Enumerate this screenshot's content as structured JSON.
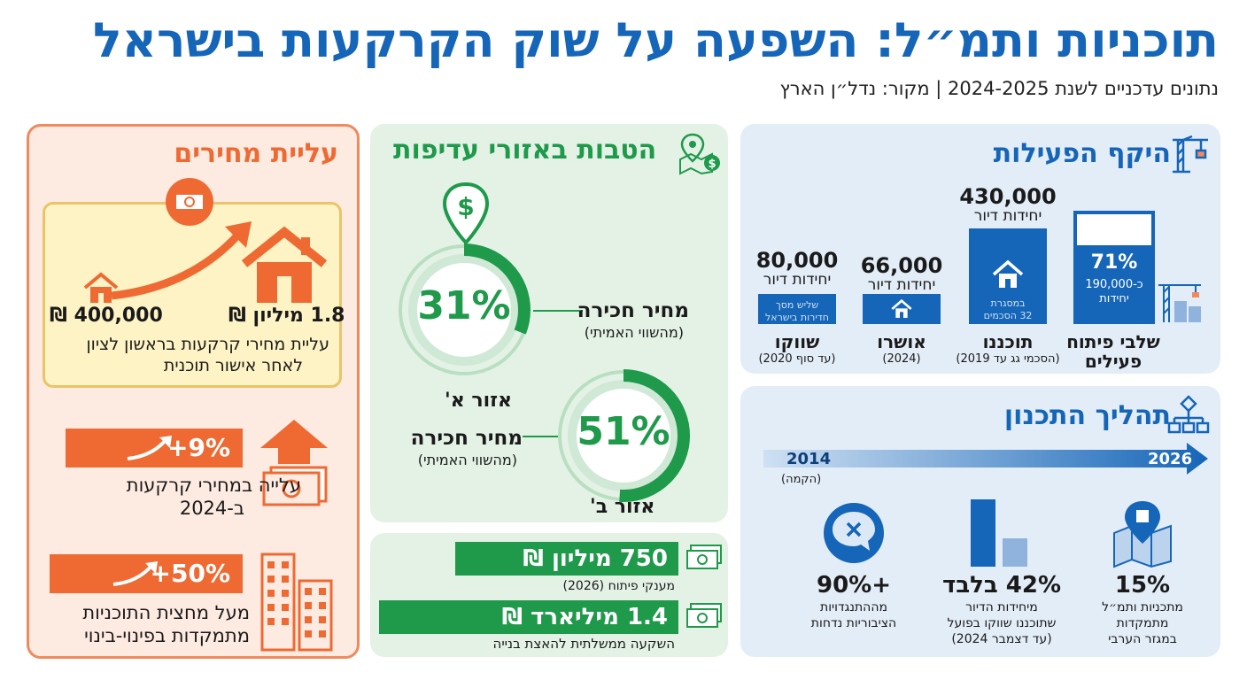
{
  "header": {
    "title": "תוכניות ותמ״ל: השפעה על שוק הקרקעות בישראל",
    "subtitle": "נתונים עדכניים לשנת 2024-2025 | מקור: נדל״ן הארץ"
  },
  "scope": {
    "title": "היקף הפעילות",
    "icon": "crane-icon",
    "bars": [
      {
        "value_label": "430,000",
        "unit": "יחידות דיור",
        "inner": [
          "במסגרת",
          "32 הסכמים"
        ],
        "name": "תוכננו",
        "note": "(הסכמי גג עד 2019)",
        "value": 430000
      },
      {
        "value_label": "66,000",
        "unit": "יחידות דיור",
        "inner": [],
        "name": "אושרו",
        "note": "(2024)",
        "value": 66000
      },
      {
        "value_label": "80,000",
        "unit": "יחידות דיור",
        "inner": [
          "שליש מסך",
          "חדירות בישראל"
        ],
        "name": "שווקו",
        "note": "(עד סוף 2020)",
        "value": 80000
      }
    ],
    "active": {
      "percent": "71%",
      "line1": "כ-190,000",
      "line2": "יחידות",
      "name_line1": "שלבי פיתוח",
      "name_line2": "פעילים",
      "fill": 0.71
    }
  },
  "process": {
    "title": "תהליך התכנון",
    "icon": "flowchart-icon",
    "timeline_start": "2014",
    "timeline_start_note": "(הקמה)",
    "timeline_end": "2026",
    "stats": [
      {
        "value": "15%",
        "lines": [
          "מתכניות ותמ״ל",
          "מתמקדות",
          "במגזר הערבי"
        ],
        "icon": "map-pin-icon"
      },
      {
        "value": "42% בלבד",
        "lines": [
          "מיחידות הדיור",
          "שתוכננו שווקו בפועל",
          "(עד דצמבר 2024)"
        ],
        "icon": "bar-chart-icon",
        "share": 0.42
      },
      {
        "value": "90%+",
        "lines": [
          "מההתנגדויות",
          "הציבוריות נדחות"
        ],
        "icon": "rejected-chat-icon"
      }
    ]
  },
  "benefits": {
    "title": "הטבות באזורי עדיפות",
    "icon": "location-money-icon",
    "zone_a": {
      "percent": "31%",
      "label": "מחיר חכירה",
      "sub": "(מהשווי האמיתי)",
      "zone": "אזור א'",
      "fraction": 0.31
    },
    "zone_b": {
      "percent": "51%",
      "label": "מחיר חכירה",
      "sub": "(מהשווי האמיתי)",
      "zone": "אזור ב'",
      "fraction": 0.51
    }
  },
  "investment": {
    "items": [
      {
        "value": "750 מיליון ₪",
        "caption": "מענקי פיתוח (2026)",
        "icon": "banknote-icon"
      },
      {
        "value": "1.4 מיליארד ₪",
        "caption": "השקעה ממשלתית להאצת בנייה",
        "icon": "banknote-icon"
      }
    ]
  },
  "prices": {
    "title": "עליית מחירים",
    "icon": "money-icon",
    "from": "400,000 ₪",
    "to": "1.8 מיליון ₪",
    "caption_line1": "עליית מחירי קרקעות בראשון לציון",
    "caption_line2": "לאחר אישור תוכנית",
    "stat1": {
      "value": "+9%",
      "line1": "עלייה במחירי קרקעות",
      "line2": "ב-2024"
    },
    "stat2": {
      "value": "+50%",
      "line1": "מעל מחצית התוכניות",
      "line2": "מתמקדות בפינוי-בינוי"
    }
  },
  "colors": {
    "blue": "#1565b8",
    "green": "#1e9a4a",
    "orange": "#ef6a32",
    "yellow": "#fdf3c4"
  }
}
